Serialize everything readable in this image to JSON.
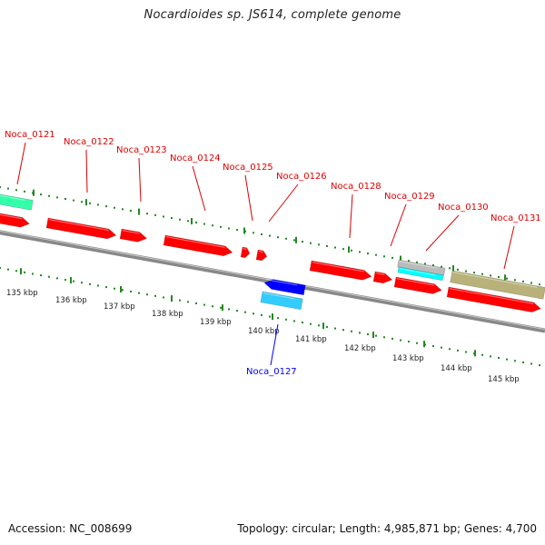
{
  "header": {
    "title": "Nocardioides sp. JS614, complete genome"
  },
  "footer": {
    "accession": "Accession: NC_008699",
    "summary": "Topology: circular; Length: 4,985,871 bp; Genes: 4,700"
  },
  "colors": {
    "forward_gene": "#ff0000",
    "reverse_gene": "#0000ff",
    "cds_cyan": "#33ccff",
    "rna_green": "#33ffaa",
    "misc_olive": "#b8b27a",
    "misc_gray": "#bbbbbb",
    "tick_green": "#228822",
    "backbone": "#888888"
  },
  "genes": [
    {
      "label": "Noca_0121",
      "strand": "forward"
    },
    {
      "label": "Noca_0122",
      "strand": "forward"
    },
    {
      "label": "Noca_0123",
      "strand": "forward"
    },
    {
      "label": "Noca_0124",
      "strand": "forward"
    },
    {
      "label": "Noca_0125",
      "strand": "forward"
    },
    {
      "label": "Noca_0126",
      "strand": "forward"
    },
    {
      "label": "Noca_0127",
      "strand": "reverse"
    },
    {
      "label": "Noca_0128",
      "strand": "forward"
    },
    {
      "label": "Noca_0129",
      "strand": "forward"
    },
    {
      "label": "Noca_0130",
      "strand": "forward"
    },
    {
      "label": "Noca_0131",
      "strand": "forward"
    }
  ],
  "scale_labels": [
    "135 kbp",
    "136 kbp",
    "137 kbp",
    "138 kbp",
    "139 kbp",
    "140 kbp",
    "141 kbp",
    "142 kbp",
    "143 kbp",
    "144 kbp",
    "145 kbp"
  ]
}
